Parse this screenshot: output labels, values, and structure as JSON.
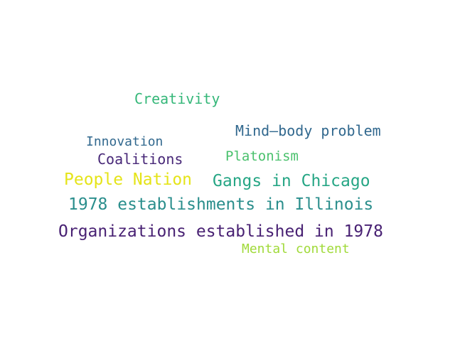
{
  "words": [
    {
      "text": "Creativity",
      "color": "#35b779"
    },
    {
      "text": "Mind–body problem",
      "color": "#31688e"
    },
    {
      "text": "Innovation",
      "color": "#31688e"
    },
    {
      "text": "Coalitions",
      "color": "#482878"
    },
    {
      "text": "Platonism",
      "color": "#4ac16d"
    },
    {
      "text": "People Nation",
      "color": "#e5e419"
    },
    {
      "text": "Gangs in Chicago",
      "color": "#26a685"
    },
    {
      "text": "1978 establishments in Illinois",
      "color": "#2a8e8c"
    },
    {
      "text": "Organizations established in 1978",
      "color": "#482173"
    },
    {
      "text": "Mental content",
      "color": "#a0da39"
    }
  ]
}
